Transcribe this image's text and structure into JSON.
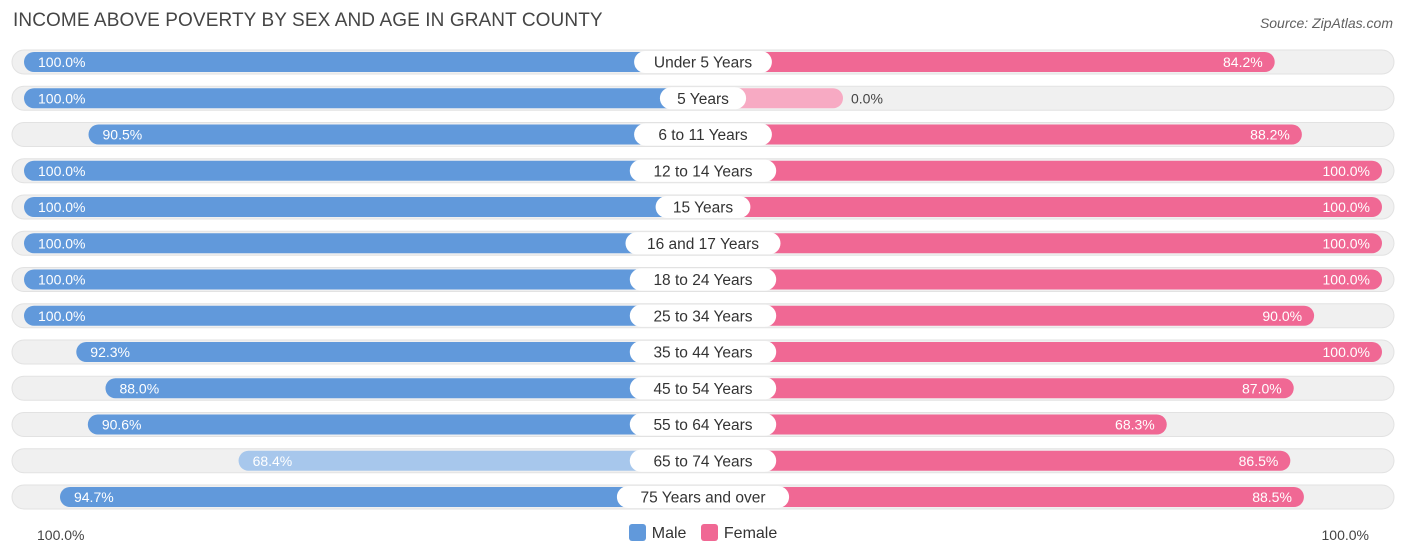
{
  "title": "INCOME ABOVE POVERTY BY SEX AND AGE IN GRANT COUNTY",
  "source": "Source: ZipAtlas.com",
  "colors": {
    "male": "#6199db",
    "male_light": "#a7c7ec",
    "female": "#f06894",
    "female_light": "#f7aac3",
    "track": "#f0f0f0"
  },
  "chart_data": {
    "type": "bar",
    "orientation": "horizontal-diverging",
    "title": "INCOME ABOVE POVERTY BY SEX AND AGE IN GRANT COUNTY",
    "categories": [
      "Under 5 Years",
      "5 Years",
      "6 to 11 Years",
      "12 to 14 Years",
      "15 Years",
      "16 and 17 Years",
      "18 to 24 Years",
      "25 to 34 Years",
      "35 to 44 Years",
      "45 to 54 Years",
      "55 to 64 Years",
      "65 to 74 Years",
      "75 Years and over"
    ],
    "series": [
      {
        "name": "Male",
        "values": [
          100.0,
          100.0,
          90.5,
          100.0,
          100.0,
          100.0,
          100.0,
          100.0,
          92.3,
          88.0,
          90.6,
          68.4,
          94.7
        ],
        "labels": [
          "100.0%",
          "100.0%",
          "90.5%",
          "100.0%",
          "100.0%",
          "100.0%",
          "100.0%",
          "100.0%",
          "92.3%",
          "88.0%",
          "90.6%",
          "68.4%",
          "94.7%"
        ]
      },
      {
        "name": "Female",
        "values": [
          84.2,
          0.0,
          88.2,
          100.0,
          100.0,
          100.0,
          100.0,
          90.0,
          100.0,
          87.0,
          68.3,
          86.5,
          88.5
        ],
        "labels": [
          "84.2%",
          "0.0%",
          "88.2%",
          "100.0%",
          "100.0%",
          "100.0%",
          "100.0%",
          "90.0%",
          "100.0%",
          "87.0%",
          "68.3%",
          "86.5%",
          "88.5%"
        ]
      }
    ],
    "xlim": [
      0,
      100
    ],
    "axis_left_label": "100.0%",
    "axis_right_label": "100.0%",
    "legend": [
      "Male",
      "Female"
    ],
    "legend_position": "bottom-center"
  }
}
